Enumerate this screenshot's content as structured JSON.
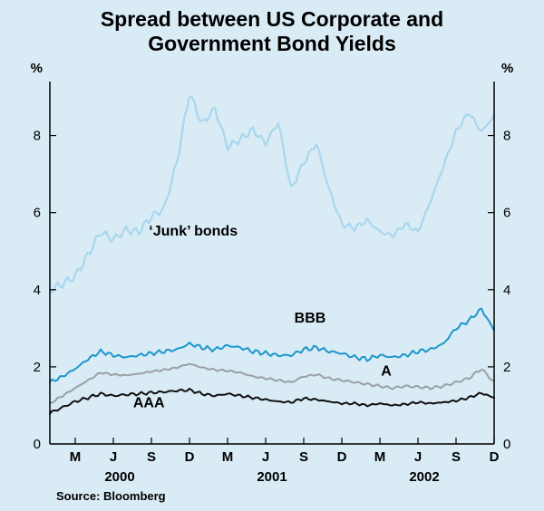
{
  "header": {
    "line1": "Spread between US Corporate and",
    "line2": "Government Bond Yields"
  },
  "source": "Source: Bloomberg",
  "chart_data": {
    "type": "line",
    "title": "Spread between US Corporate and Government Bond Yields",
    "y_unit": "%",
    "ylim": [
      0,
      9.4
    ],
    "y_ticks": [
      0,
      2,
      4,
      6,
      8
    ],
    "x_start": "Jan 2000",
    "x_end": "Dec 2002",
    "x_frequency": "monthly",
    "grid": false,
    "background_color": "#d9ebf5",
    "x_ticks": [
      {
        "label": "M",
        "month": 2
      },
      {
        "label": "J",
        "month": 5
      },
      {
        "label": "S",
        "month": 8
      },
      {
        "label": "D",
        "month": 11
      },
      {
        "label": "M",
        "month": 14
      },
      {
        "label": "J",
        "month": 17
      },
      {
        "label": "S",
        "month": 20
      },
      {
        "label": "D",
        "month": 23
      },
      {
        "label": "M",
        "month": 26
      },
      {
        "label": "J",
        "month": 29
      },
      {
        "label": "S",
        "month": 32
      },
      {
        "label": "D",
        "month": 35
      }
    ],
    "years": [
      {
        "label": "2000",
        "month": 5.5
      },
      {
        "label": "2001",
        "month": 17.5
      },
      {
        "label": "2002",
        "month": 29.5
      }
    ],
    "series": [
      {
        "name": "‘Junk’ bonds",
        "color": "#a9d7ee",
        "width": 2.2,
        "noise": 0.13,
        "values": [
          4.0,
          4.15,
          4.35,
          4.9,
          5.5,
          5.3,
          5.55,
          5.5,
          5.9,
          6.1,
          7.3,
          9.1,
          8.3,
          8.7,
          7.7,
          7.9,
          8.15,
          7.8,
          8.35,
          6.6,
          7.3,
          7.8,
          6.6,
          5.7,
          5.6,
          5.8,
          5.5,
          5.4,
          5.7,
          5.5,
          6.3,
          7.2,
          8.1,
          8.6,
          8.1,
          8.5
        ]
      },
      {
        "name": "BBB",
        "color": "#1d96cc",
        "width": 2,
        "noise": 0.05,
        "values": [
          1.6,
          1.75,
          1.95,
          2.2,
          2.4,
          2.3,
          2.25,
          2.3,
          2.35,
          2.4,
          2.45,
          2.6,
          2.5,
          2.45,
          2.55,
          2.5,
          2.4,
          2.35,
          2.3,
          2.3,
          2.45,
          2.5,
          2.4,
          2.35,
          2.25,
          2.2,
          2.3,
          2.25,
          2.3,
          2.4,
          2.45,
          2.6,
          3.0,
          3.2,
          3.5,
          2.95
        ]
      },
      {
        "name": "A",
        "color": "#9aa0a4",
        "width": 2,
        "noise": 0.045,
        "values": [
          1.05,
          1.25,
          1.45,
          1.65,
          1.85,
          1.8,
          1.78,
          1.82,
          1.88,
          1.92,
          1.98,
          2.08,
          1.98,
          1.92,
          1.9,
          1.85,
          1.75,
          1.7,
          1.65,
          1.6,
          1.75,
          1.8,
          1.7,
          1.65,
          1.6,
          1.55,
          1.5,
          1.45,
          1.5,
          1.48,
          1.45,
          1.5,
          1.6,
          1.7,
          1.95,
          1.6
        ]
      },
      {
        "name": "AAA",
        "color": "#111111",
        "width": 2,
        "noise": 0.045,
        "values": [
          0.8,
          0.95,
          1.1,
          1.2,
          1.3,
          1.25,
          1.28,
          1.3,
          1.33,
          1.35,
          1.38,
          1.4,
          1.3,
          1.25,
          1.3,
          1.25,
          1.2,
          1.15,
          1.1,
          1.08,
          1.18,
          1.15,
          1.1,
          1.05,
          1.05,
          1.0,
          1.05,
          1.0,
          1.03,
          1.08,
          1.05,
          1.08,
          1.12,
          1.2,
          1.32,
          1.2
        ]
      }
    ],
    "annotations": [
      {
        "text": "‘Junk’ bonds",
        "month": 11.3,
        "value": 5.4
      },
      {
        "text": "BBB",
        "month": 20.5,
        "value": 3.15
      },
      {
        "text": "A",
        "month": 26.5,
        "value": 1.78
      },
      {
        "text": "AAA",
        "month": 7.8,
        "value": 0.95
      }
    ]
  }
}
